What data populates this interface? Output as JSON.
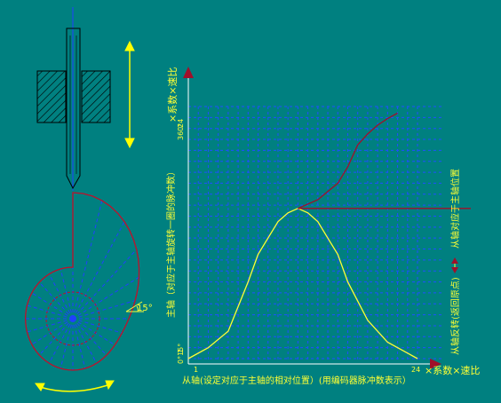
{
  "diagram": {
    "angle_label": "15°",
    "y_axis": {
      "tick_max": "24",
      "tick_max_deg": "360°",
      "tick_min": "1",
      "tick_min_deg": "0°15°",
      "unit_label": "×系数×速比",
      "title": "主轴（对应于主轴旋转一圈的脉冲数）"
    },
    "x_axis": {
      "tick_min": "1",
      "tick_max": "24",
      "unit_label": "×系数×速比",
      "title": "从轴(设定对应于主轴的相对位置）(用编码器脉冲数表示）"
    },
    "right_labels": {
      "upper": "从轴对应于主轴位置",
      "lower": "从轴反转(返回原点)"
    },
    "colors": {
      "background": "#008080",
      "grid": "#1f4fff",
      "text": "#ffff33",
      "curve_up": "#ffff33",
      "curve_dark": "#a0102a",
      "cam": "#c0102a"
    }
  },
  "chart_data": {
    "type": "line",
    "x_ticks": [
      "1",
      "24"
    ],
    "y_ticks": [
      "1",
      "24"
    ],
    "xlim": [
      1,
      24
    ],
    "ylim": [
      1,
      24
    ],
    "grid": true,
    "series": [
      {
        "values": [
          [
            1,
            1
          ],
          [
            3,
            2
          ],
          [
            5,
            3.5
          ],
          [
            7,
            8
          ],
          [
            8,
            10.5
          ],
          [
            9,
            12
          ],
          [
            10,
            13.5
          ],
          [
            11,
            14.3
          ],
          [
            12,
            14.7
          ],
          [
            13,
            14.3
          ],
          [
            14,
            13.5
          ],
          [
            15,
            12
          ],
          [
            16,
            10.5
          ],
          [
            17,
            8
          ],
          [
            19,
            4.5
          ],
          [
            21,
            2.5
          ],
          [
            23,
            1.5
          ],
          [
            24,
            1
          ]
        ]
      },
      {
        "values": [
          [
            12,
            14.7
          ],
          [
            14,
            15.5
          ],
          [
            16,
            17
          ],
          [
            17,
            18.5
          ],
          [
            18,
            20.5
          ],
          [
            19,
            21.5
          ],
          [
            20,
            22.3
          ],
          [
            21,
            22.9
          ],
          [
            22,
            23.4
          ]
        ]
      },
      {
        "values": [
          [
            12,
            14.7
          ],
          [
            24,
            14.7
          ]
        ]
      }
    ]
  }
}
